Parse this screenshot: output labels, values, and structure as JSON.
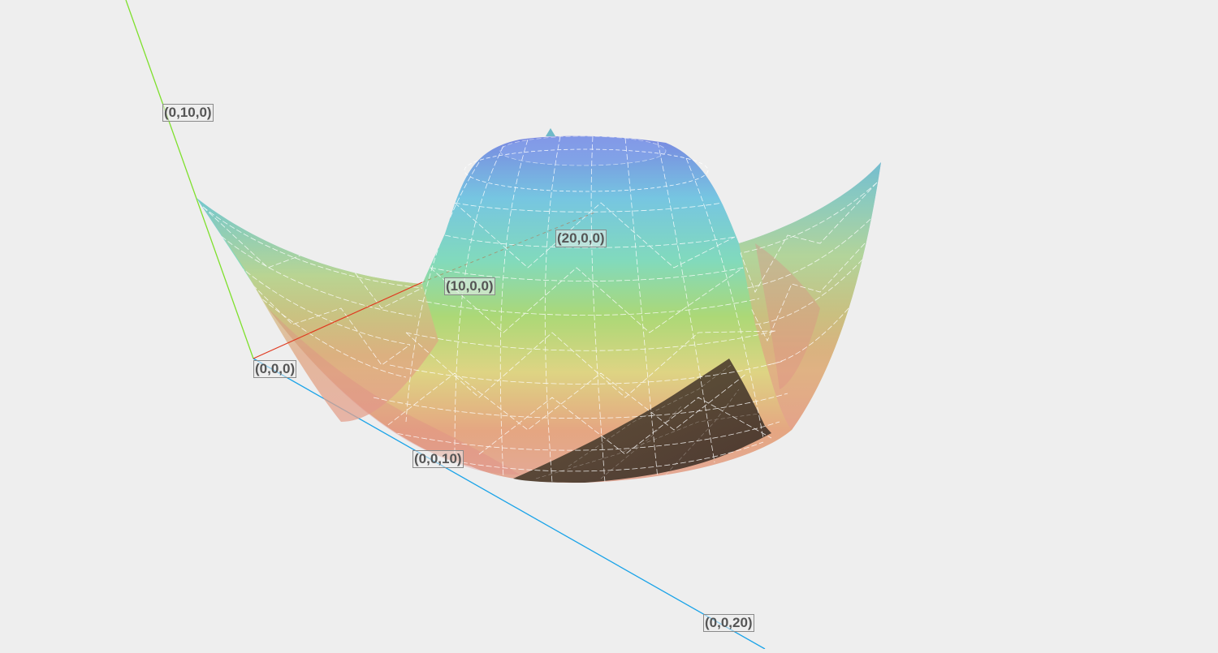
{
  "colors": {
    "background": "#eeeeee",
    "x_axis": "#e03a20",
    "y_axis": "#7ee02c",
    "z_axis": "#1aa3e8",
    "mesh": "#ffffff",
    "surface_top": "#6d86e0",
    "surface_mid": "#86d88a",
    "surface_low": "#e0a07a",
    "surface_shadow": "#4a3b2a"
  },
  "axis_labels": {
    "y10": "(0,10,0)",
    "x20": "(20,0,0)",
    "x10": "(10,0,0)",
    "origin": "(0,0,0)",
    "z10": "(0,0,10)",
    "z20": "(0,0,20)"
  }
}
